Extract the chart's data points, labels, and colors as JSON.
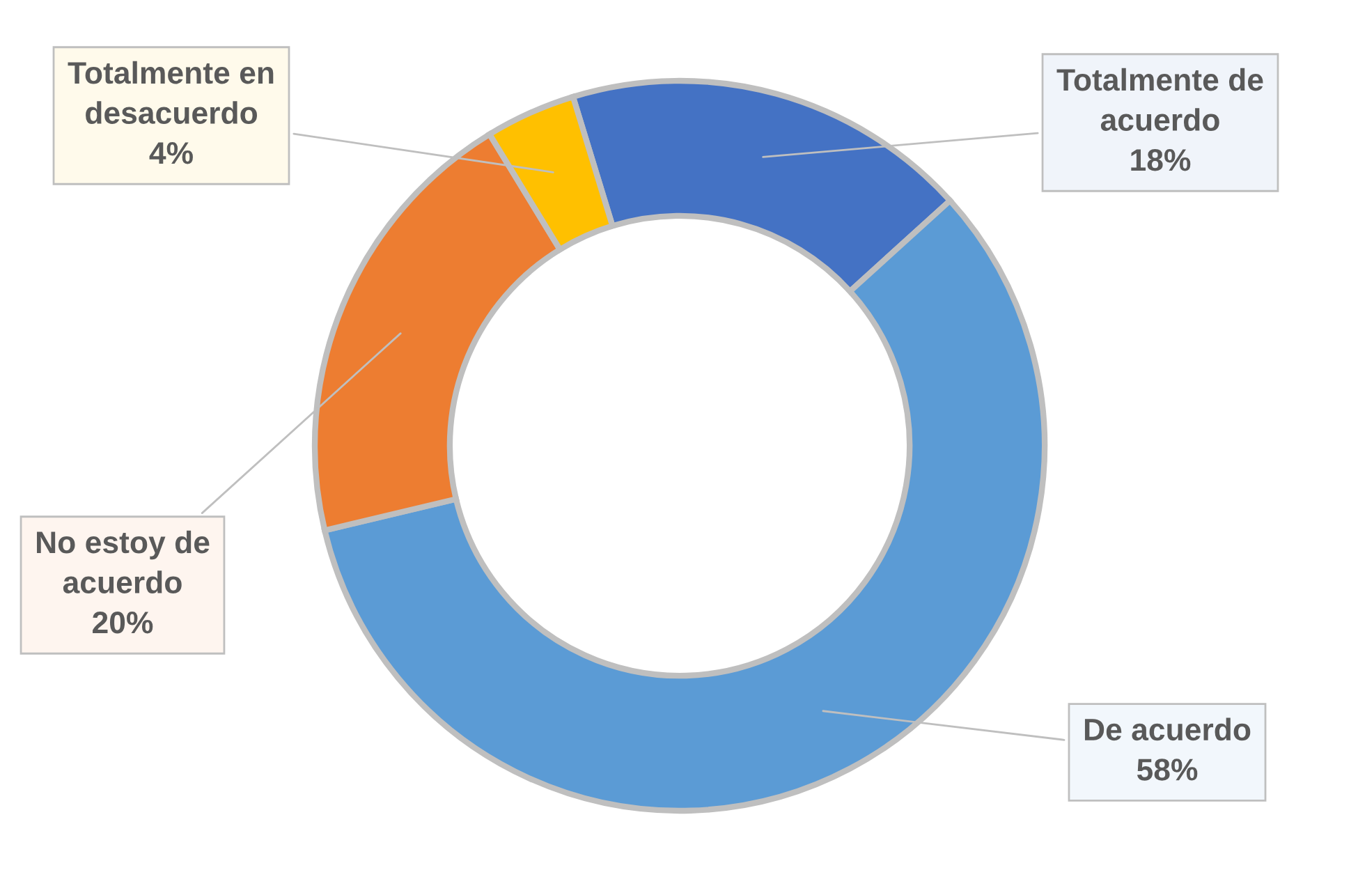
{
  "chart_data": {
    "type": "donut",
    "categories": [
      "Totalmente de acuerdo",
      "De acuerdo",
      "No estoy de acuerdo",
      "Totalmente en desacuerdo"
    ],
    "values": [
      18,
      58,
      20,
      4
    ],
    "colors": [
      "#4472c4",
      "#5b9bd5",
      "#ed7d31",
      "#ffc000"
    ],
    "value_labels": [
      "18%",
      "58%",
      "20%",
      "4%"
    ],
    "legend": false
  }
}
